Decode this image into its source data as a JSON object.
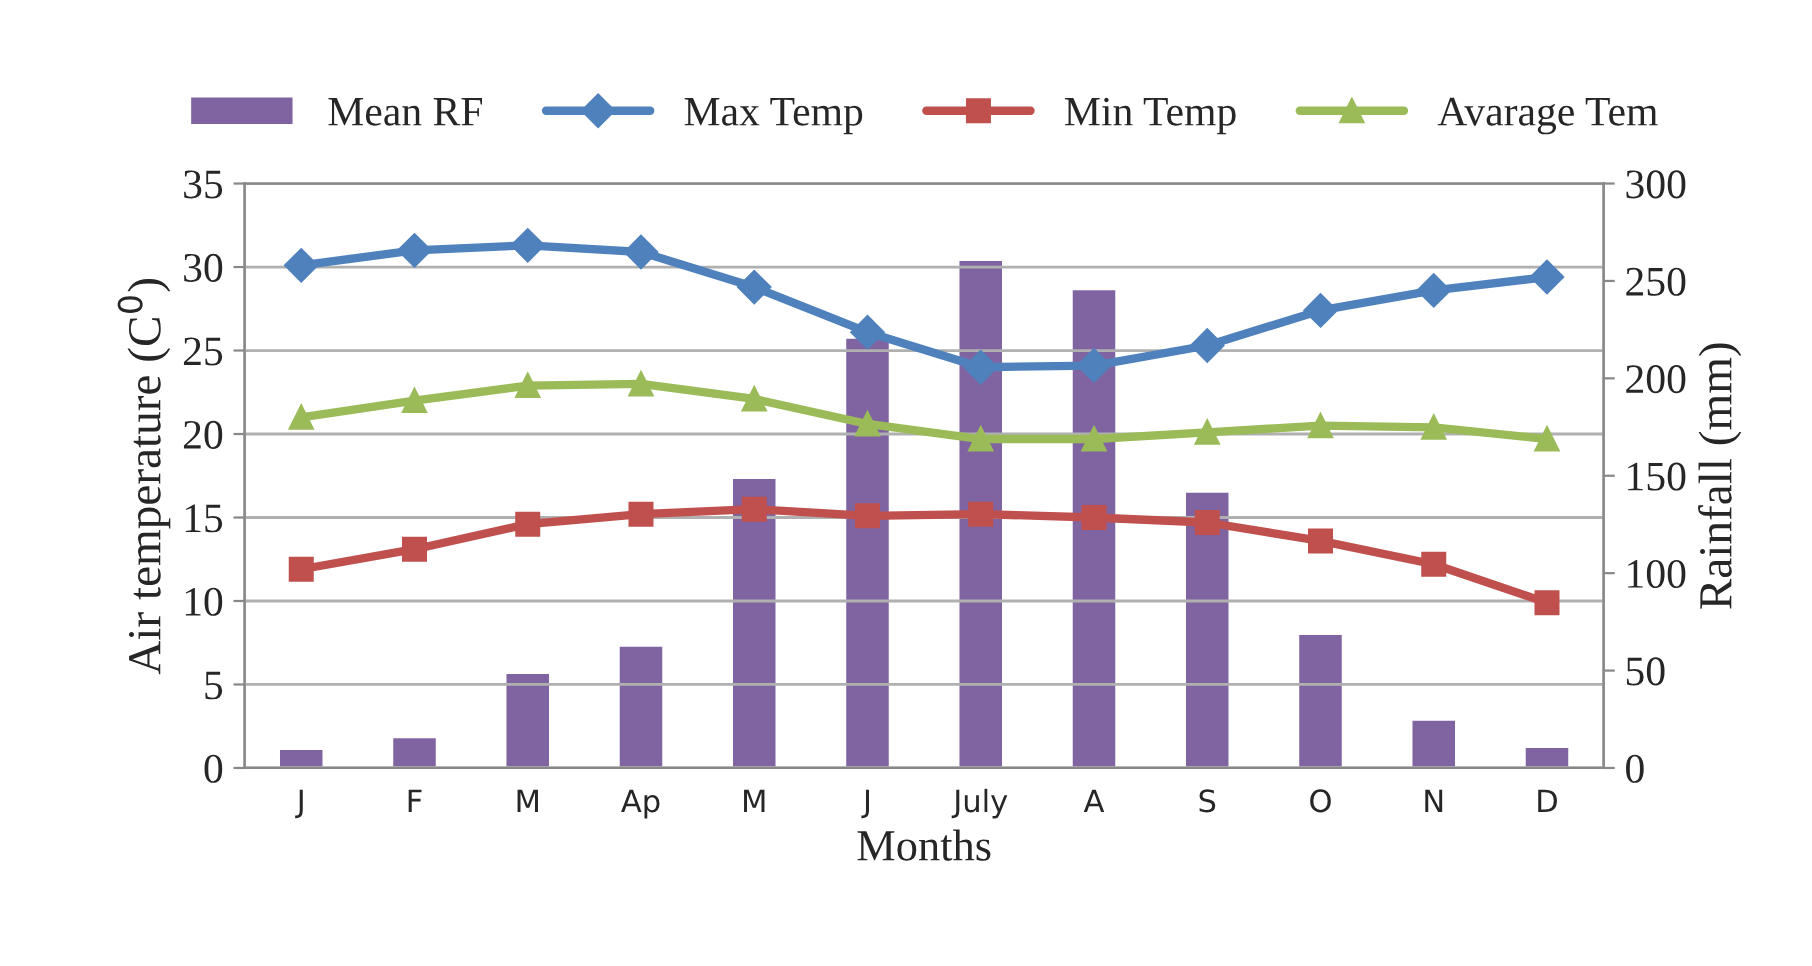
{
  "chart_data": {
    "type": "line",
    "xlabel": "Months",
    "ylabel": "Air temperature (C$^{0}$)",
    "y2label": "Rainfall (mm)",
    "categories": [
      "J",
      "F",
      "M",
      "Ap",
      "M",
      "J",
      "July",
      "A",
      "S",
      "O",
      "N",
      "D"
    ],
    "series": [
      {
        "name": "Mean RF",
        "type": "bar",
        "axis": "y2",
        "color": "#8064a2",
        "values": [
          10,
          16,
          49,
          63,
          149,
          221,
          261,
          246,
          142,
          69,
          25,
          11
        ]
      },
      {
        "name": "Max Temp",
        "marker": "diamond",
        "color": "#4f81bd",
        "values": [
          30.1,
          31.0,
          31.3,
          30.9,
          28.8,
          26.1,
          24.0,
          24.1,
          25.3,
          27.4,
          28.6,
          29.4
        ]
      },
      {
        "name": "Min Temp",
        "marker": "square",
        "color": "#c0504d",
        "values": [
          11.9,
          13.1,
          14.6,
          15.2,
          15.5,
          15.1,
          15.2,
          15.0,
          14.7,
          13.6,
          12.2,
          9.9
        ]
      },
      {
        "name": "Avarage Tem",
        "marker": "triangle",
        "color": "#9bbb59",
        "values": [
          21.0,
          22.0,
          22.9,
          23.0,
          22.1,
          20.6,
          19.7,
          19.7,
          20.1,
          20.5,
          20.4,
          19.7
        ]
      }
    ],
    "ylim": [
      0,
      35
    ],
    "yticks": [
      0,
      5,
      10,
      15,
      20,
      25,
      30,
      35
    ],
    "y2lim": [
      0,
      300
    ],
    "y2ticks": [
      0,
      50,
      100,
      150,
      200,
      250,
      300
    ],
    "grid": "y",
    "legend": "top"
  }
}
